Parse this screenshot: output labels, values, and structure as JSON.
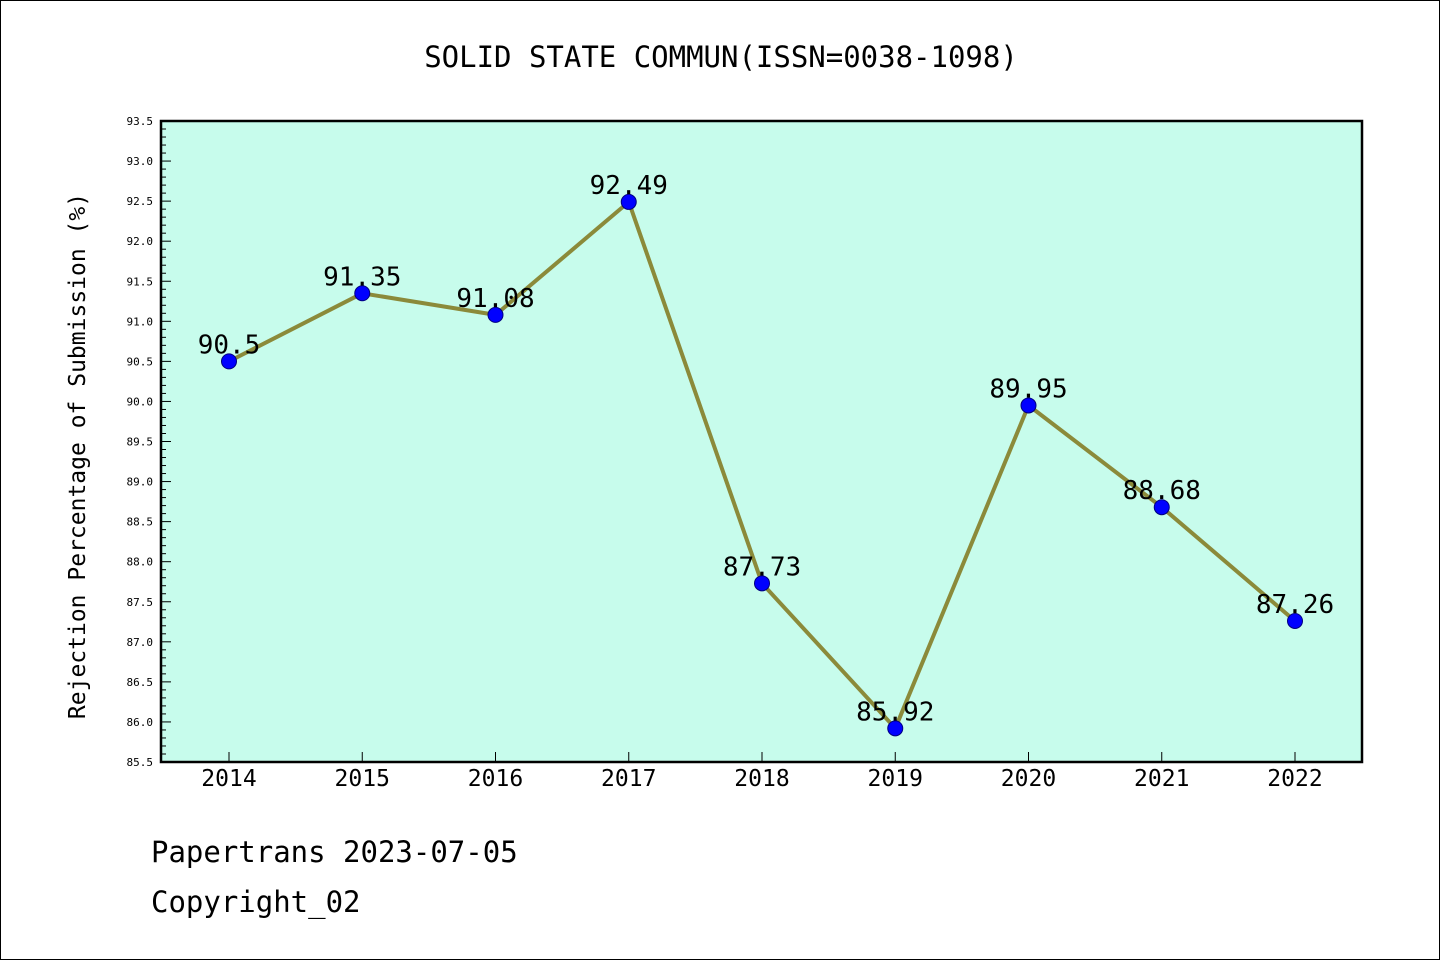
{
  "chart_data": {
    "type": "line",
    "title": "SOLID STATE COMMUN(ISSN=0038-1098)",
    "xlabel": "",
    "ylabel": "Rejection Percentage of Submission (%)",
    "categories": [
      "2014",
      "2015",
      "2016",
      "2017",
      "2018",
      "2019",
      "2020",
      "2021",
      "2022"
    ],
    "series": [
      {
        "values": [
          90.5,
          91.35,
          91.08,
          92.49,
          87.73,
          85.92,
          89.95,
          88.68,
          87.26
        ],
        "data_labels": [
          "90.5",
          "91.35",
          "91.08",
          "92.49",
          "87.73",
          "85.92",
          "89.95",
          "88.68",
          "87.26"
        ]
      }
    ],
    "ylim": [
      85.5,
      93.5
    ],
    "y_ticks": [
      "85.5",
      "86.0",
      "86.5",
      "87.0",
      "87.5",
      "88.0",
      "88.5",
      "89.0",
      "89.5",
      "90.0",
      "90.5",
      "91.0",
      "91.5",
      "92.0",
      "92.5",
      "93.0",
      "93.5"
    ],
    "grid": false,
    "legend": "none",
    "colors": {
      "plot_background": "#c7fcec",
      "line": "#8b8a3a",
      "marker": "#0000ff"
    }
  },
  "footer": {
    "line1": "Papertrans 2023-07-05",
    "line2": "Copyright_02"
  }
}
